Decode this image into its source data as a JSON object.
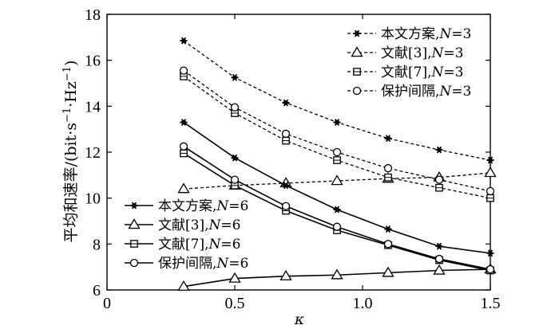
{
  "chart_data": {
    "type": "line",
    "title": "",
    "xlabel": "κ",
    "ylabel": "平均和速率/(bit·s⁻¹·Hz⁻¹)",
    "ylabel_parts": {
      "main": "平均和速率/(bit",
      "dot1": "·",
      "s": "s",
      "s_exp": "−1",
      "dot2": "·",
      "hz": "Hz",
      "hz_exp": "−1",
      "close": ")"
    },
    "xlim": [
      0,
      1.5
    ],
    "ylim": [
      6,
      18
    ],
    "xticks": [
      "0",
      "0.5",
      "1.0",
      "1.5"
    ],
    "xtick_values": [
      0,
      0.5,
      1.0,
      1.5
    ],
    "yticks": [
      "6",
      "8",
      "10",
      "12",
      "14",
      "16",
      "18"
    ],
    "ytick_values": [
      6,
      8,
      10,
      12,
      14,
      16,
      18
    ],
    "grid": false,
    "x": [
      0.3,
      0.5,
      0.7,
      0.9,
      1.1,
      1.3,
      1.5
    ],
    "legends": [
      {
        "placement": "top-right",
        "entries": [
          {
            "label": "本文方案,",
            "n": "N",
            "eq": "=3",
            "marker": "star",
            "dashed": true
          },
          {
            "label": "文献[3],",
            "n": "N",
            "eq": "=3",
            "marker": "triangle",
            "dashed": true
          },
          {
            "label": "文献[7],",
            "n": "N",
            "eq": "=3",
            "marker": "square",
            "dashed": true
          },
          {
            "label": "保护间隔,",
            "n": "N",
            "eq": "=3",
            "marker": "circle",
            "dashed": true
          }
        ]
      },
      {
        "placement": "bottom-left",
        "entries": [
          {
            "label": "本文方案,",
            "n": "N",
            "eq": "=6",
            "marker": "star",
            "dashed": false
          },
          {
            "label": "文献[3],",
            "n": "N",
            "eq": "=6",
            "marker": "triangle",
            "dashed": false
          },
          {
            "label": "文献[7],",
            "n": "N",
            "eq": "=6",
            "marker": "square",
            "dashed": false
          },
          {
            "label": "保护间隔,",
            "n": "N",
            "eq": "=6",
            "marker": "circle",
            "dashed": false
          }
        ]
      }
    ],
    "series": [
      {
        "name": "本文方案,N=3",
        "marker": "star",
        "dashed": true,
        "values": [
          16.85,
          15.25,
          14.15,
          13.3,
          12.6,
          12.1,
          11.65
        ]
      },
      {
        "name": "文献[3],N=3",
        "marker": "triangle",
        "dashed": true,
        "values": [
          10.4,
          10.55,
          10.65,
          10.75,
          10.85,
          10.9,
          11.1
        ]
      },
      {
        "name": "文献[7],N=3",
        "marker": "square",
        "dashed": true,
        "values": [
          15.3,
          13.7,
          12.5,
          11.65,
          10.9,
          10.45,
          10.0
        ]
      },
      {
        "name": "保护间隔,N=3",
        "marker": "circle",
        "dashed": true,
        "values": [
          15.55,
          13.95,
          12.8,
          12.0,
          11.3,
          10.8,
          10.3
        ]
      },
      {
        "name": "本文方案,N=6",
        "marker": "star",
        "dashed": false,
        "values": [
          13.3,
          11.75,
          10.55,
          9.5,
          8.65,
          7.9,
          7.6
        ]
      },
      {
        "name": "文献[3],N=6",
        "marker": "triangle",
        "dashed": false,
        "values": [
          6.15,
          6.5,
          6.6,
          6.65,
          6.75,
          6.85,
          6.9
        ]
      },
      {
        "name": "文献[7],N=6",
        "marker": "square",
        "dashed": false,
        "values": [
          11.95,
          10.55,
          9.45,
          8.6,
          7.95,
          7.3,
          6.85
        ]
      },
      {
        "name": "保护间隔,N=6",
        "marker": "circle",
        "dashed": false,
        "values": [
          12.25,
          10.8,
          9.65,
          8.75,
          8.0,
          7.35,
          6.9
        ]
      }
    ]
  }
}
